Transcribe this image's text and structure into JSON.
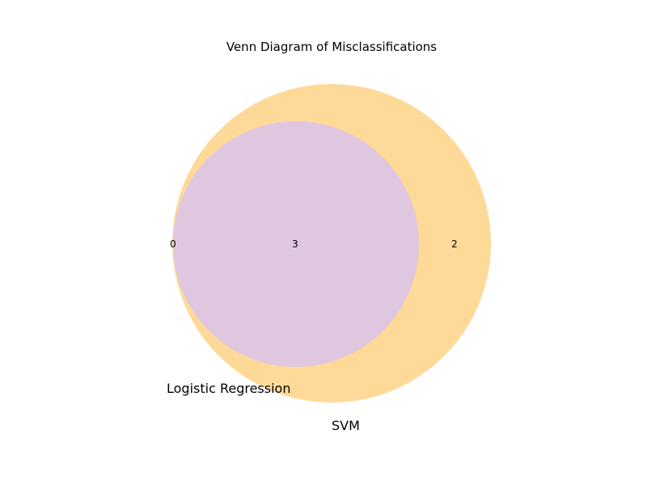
{
  "diagram": {
    "title": "Venn Diagram of Misclassifications",
    "sets": [
      {
        "name": "Logistic Regression",
        "color": "#e0c7e0"
      },
      {
        "name": "SVM",
        "color": "#fed998"
      }
    ],
    "regions": {
      "only_logistic_regression": "0",
      "both": "3",
      "only_svm": "2"
    }
  }
}
